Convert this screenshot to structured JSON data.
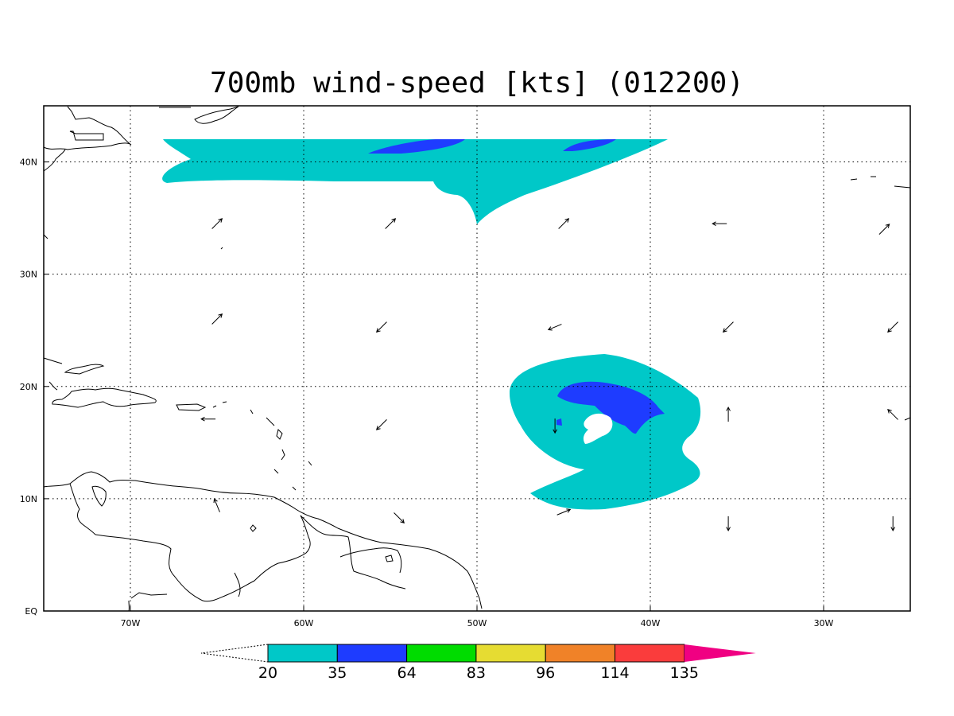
{
  "title": "700mb wind-speed [kts] (012200)",
  "map": {
    "lon_range": [
      -75,
      -25
    ],
    "lat_range": [
      0,
      45
    ],
    "lon_ticks": [
      {
        "value": -70,
        "label": "70W"
      },
      {
        "value": -60,
        "label": "60W"
      },
      {
        "value": -50,
        "label": "50W"
      },
      {
        "value": -40,
        "label": "40W"
      },
      {
        "value": -30,
        "label": "30W"
      }
    ],
    "lat_ticks": [
      {
        "value": 0,
        "label": "EQ"
      },
      {
        "value": 10,
        "label": "10N"
      },
      {
        "value": 20,
        "label": "20N"
      },
      {
        "value": 30,
        "label": "30N"
      },
      {
        "value": 40,
        "label": "40N"
      }
    ],
    "grid": "dotted",
    "colorbar": {
      "levels": [
        "20",
        "35",
        "64",
        "83",
        "96",
        "114",
        "135"
      ],
      "colors": [
        "#00c8c8",
        "#1e3cff",
        "#00dc00",
        "#e6dc32",
        "#f08228",
        "#fa3c3c",
        "#f00082"
      ],
      "below_color": "#ffffff",
      "above_color": "#f00082"
    },
    "wind_vectors": [
      {
        "lon": -65,
        "lat": 34.5,
        "dir": "NE"
      },
      {
        "lon": -55,
        "lat": 34.5,
        "dir": "NE"
      },
      {
        "lon": -45,
        "lat": 34.5,
        "dir": "NE"
      },
      {
        "lon": -36,
        "lat": 34.5,
        "dir": "W"
      },
      {
        "lon": -26.5,
        "lat": 34,
        "dir": "NE"
      },
      {
        "lon": -65,
        "lat": 26,
        "dir": "NE"
      },
      {
        "lon": -55.5,
        "lat": 25.3,
        "dir": "SW"
      },
      {
        "lon": -45.5,
        "lat": 25.3,
        "dir": "WSW"
      },
      {
        "lon": -35.5,
        "lat": 25.3,
        "dir": "SW"
      },
      {
        "lon": -26,
        "lat": 25.3,
        "dir": "SW"
      },
      {
        "lon": -65.5,
        "lat": 17.1,
        "dir": "W"
      },
      {
        "lon": -55.5,
        "lat": 16.6,
        "dir": "SW"
      },
      {
        "lon": -45.5,
        "lat": 16.5,
        "dir": "S"
      },
      {
        "lon": -35.5,
        "lat": 17.5,
        "dir": "N"
      },
      {
        "lon": -26,
        "lat": 17.5,
        "dir": "NW"
      },
      {
        "lon": -65,
        "lat": 9.4,
        "dir": "NNW"
      },
      {
        "lon": -54.5,
        "lat": 8.3,
        "dir": "SE"
      },
      {
        "lon": -45,
        "lat": 8.8,
        "dir": "ENE"
      },
      {
        "lon": -35.5,
        "lat": 7.8,
        "dir": "S"
      },
      {
        "lon": -26,
        "lat": 7.8,
        "dir": "S"
      }
    ]
  }
}
